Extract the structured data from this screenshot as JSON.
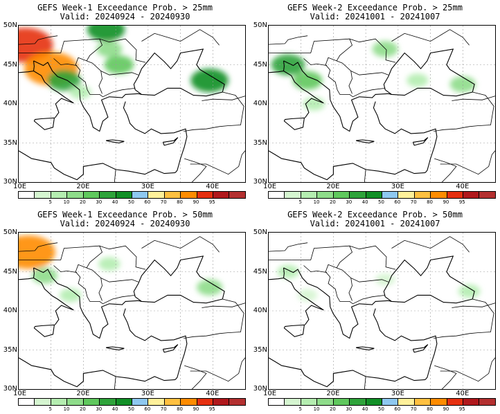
{
  "panels": [
    {
      "title_line1": "GEFS Week-1 Exceedance Prob. > 25mm",
      "title_line2": "Valid: 20240924 - 20240930",
      "field": [
        {
          "level": 95,
          "lon": 11,
          "lat": 47.5
        },
        {
          "level": 90,
          "lon": 15,
          "lat": 44.5
        },
        {
          "level": 40,
          "lon": 17,
          "lat": 43
        },
        {
          "level": 30,
          "lon": 25.5,
          "lat": 45
        },
        {
          "level": 20,
          "lon": 24,
          "lat": 47
        },
        {
          "level": 50,
          "lon": 39.5,
          "lat": 43
        },
        {
          "level": 10,
          "lon": 19.5,
          "lat": 41.5
        },
        {
          "level": 50,
          "lon": 23.5,
          "lat": 49.5
        }
      ]
    },
    {
      "title_line1": "GEFS Week-2 Exceedance Prob. > 25mm",
      "title_line2": "Valid: 20241001 - 20241007",
      "field": [
        {
          "level": 40,
          "lon": 13,
          "lat": 45
        },
        {
          "level": 30,
          "lon": 16,
          "lat": 43
        },
        {
          "level": 20,
          "lon": 28,
          "lat": 47
        },
        {
          "level": 20,
          "lon": 40,
          "lat": 42.5
        },
        {
          "level": 10,
          "lon": 33,
          "lat": 43
        },
        {
          "level": 10,
          "lon": 17,
          "lat": 40
        }
      ]
    },
    {
      "title_line1": "GEFS Week-1 Exceedance Prob. > 50mm",
      "title_line2": "Valid: 20240924 - 20240930",
      "field": [
        {
          "level": 90,
          "lon": 11.5,
          "lat": 47.5
        },
        {
          "level": 20,
          "lon": 14,
          "lat": 44.5
        },
        {
          "level": 10,
          "lon": 18,
          "lat": 42
        },
        {
          "level": 20,
          "lon": 39.5,
          "lat": 43
        },
        {
          "level": 10,
          "lon": 24,
          "lat": 46
        }
      ]
    },
    {
      "title_line1": "GEFS Week-2 Exceedance Prob. > 50mm",
      "title_line2": "Valid: 20241001 - 20241007",
      "field": [
        {
          "level": 10,
          "lon": 13,
          "lat": 45
        },
        {
          "level": 5,
          "lon": 16,
          "lat": 42
        },
        {
          "level": 10,
          "lon": 41,
          "lat": 42.5
        },
        {
          "level": 5,
          "lon": 28,
          "lat": 44
        }
      ]
    }
  ],
  "map": {
    "lat_labels": [
      "50N",
      "45N",
      "40N",
      "35N",
      "30N"
    ],
    "lon_labels": [
      "10E",
      "20E",
      "30E",
      "40E"
    ],
    "lon_range": [
      10,
      45
    ],
    "lat_range": [
      30,
      50
    ]
  },
  "colorbar": {
    "levels": [
      "5",
      "10",
      "20",
      "30",
      "40",
      "50",
      "60",
      "70",
      "80",
      "90",
      "95"
    ],
    "colors": [
      "#ffffff",
      "#d5f5d0",
      "#b4edb0",
      "#8edc8a",
      "#5fc85d",
      "#2ea33a",
      "#118f26",
      "#8ec8f0",
      "#fff09a",
      "#ffc040",
      "#ff8c00",
      "#e53010",
      "#b0181c",
      "#b33030"
    ]
  }
}
